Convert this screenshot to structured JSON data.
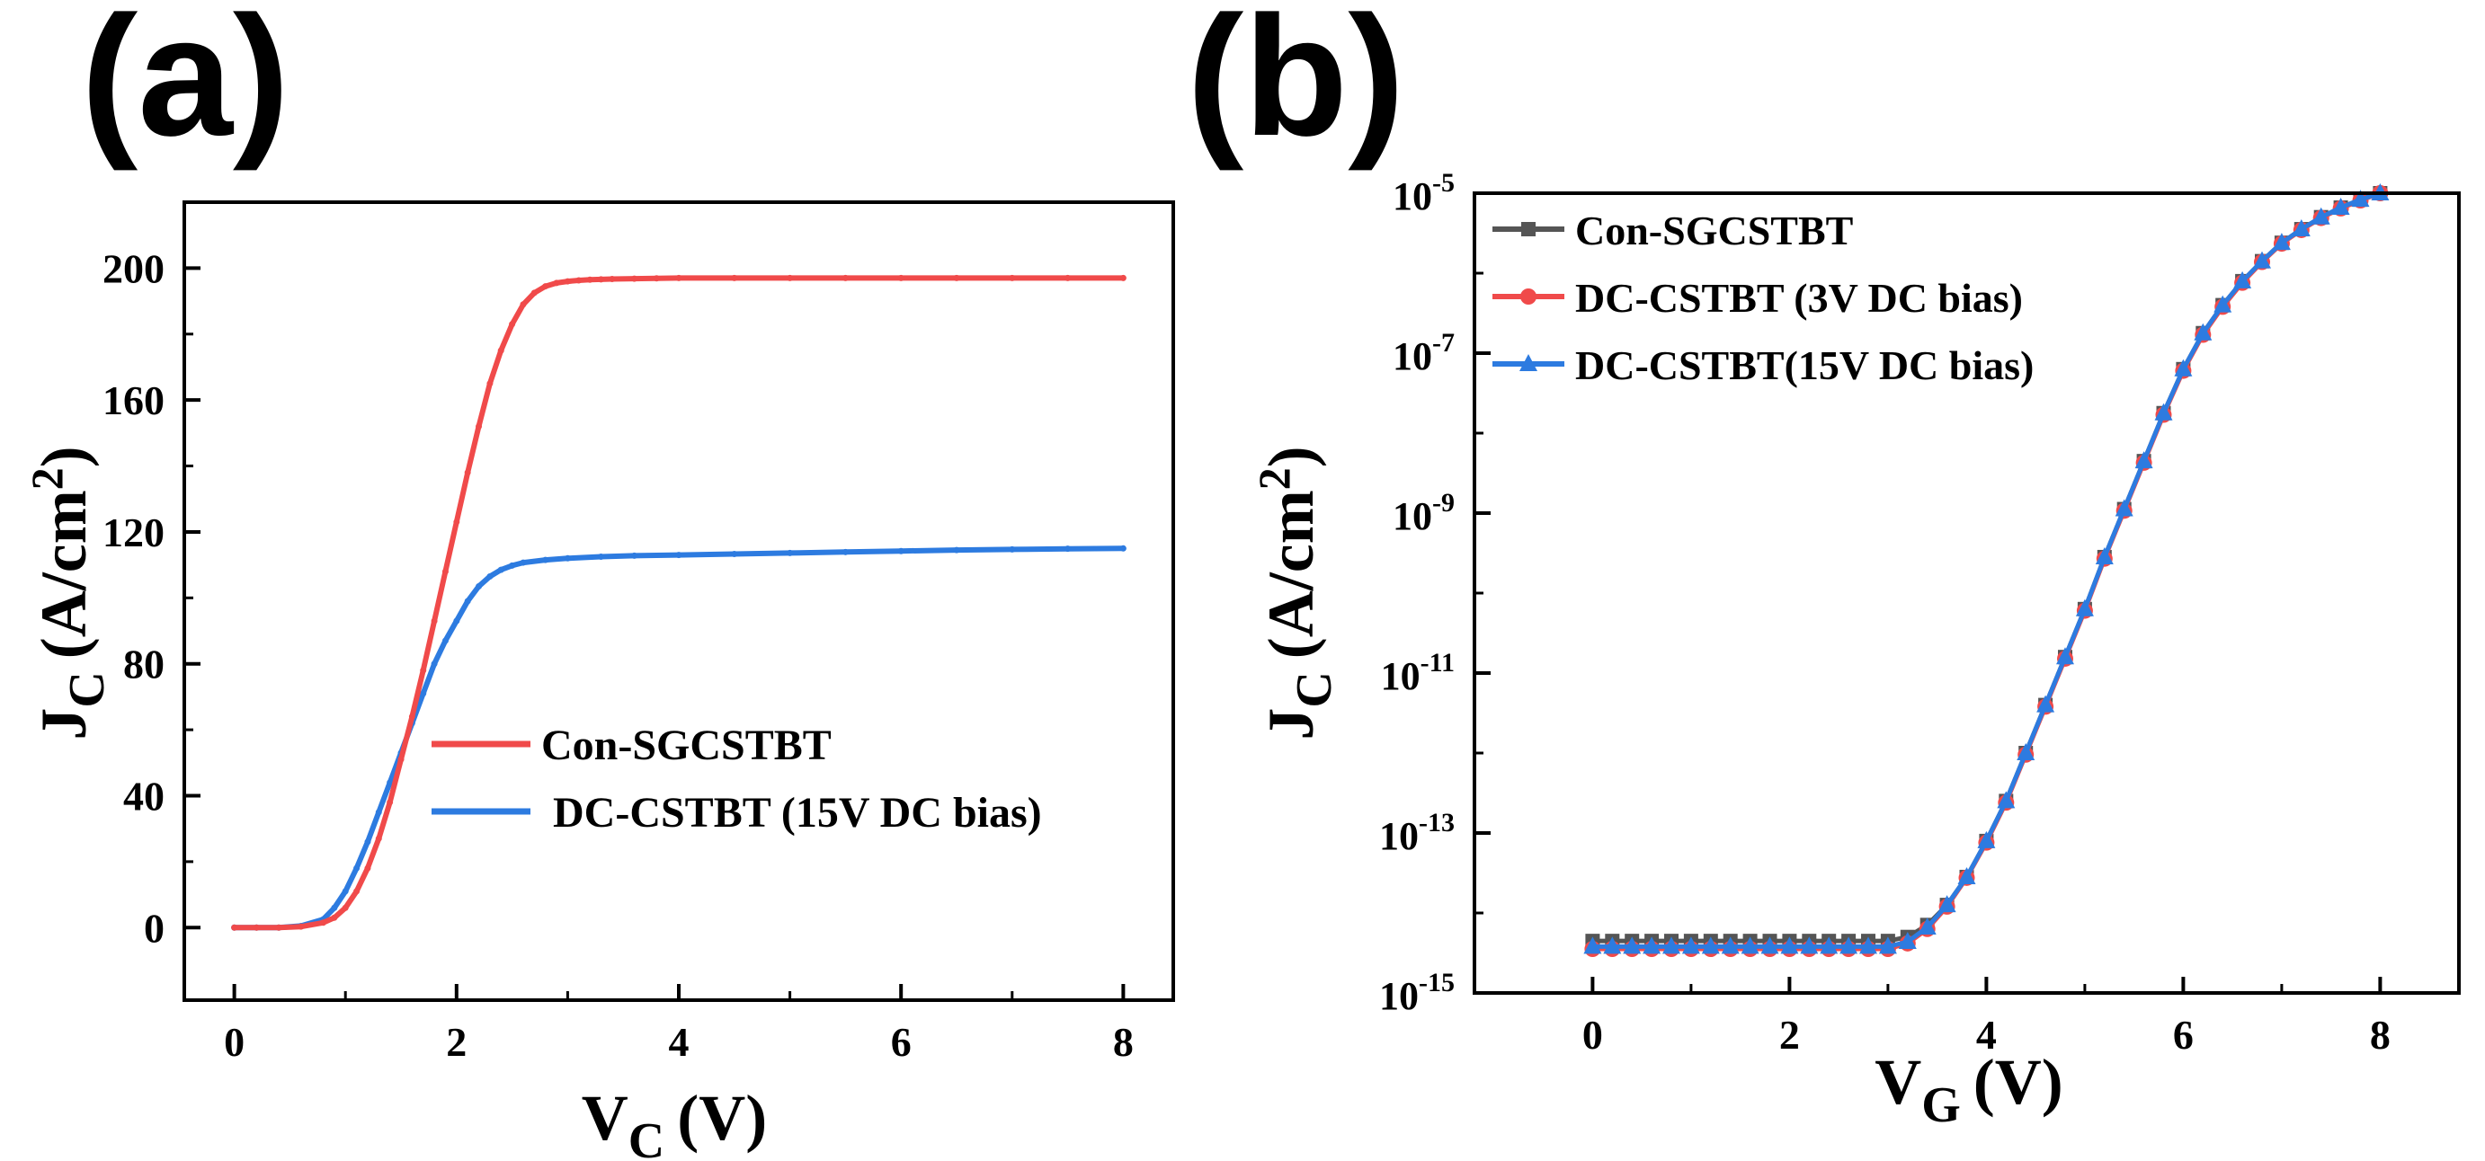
{
  "chart_data": [
    {
      "panel": "(a)",
      "type": "line",
      "xlabel": {
        "main": "V",
        "sub": "C",
        "unit": "(V)"
      },
      "ylabel": {
        "main": "J",
        "sub": "C",
        "unit": "(A/cm",
        "sup": "2",
        "close": ")"
      },
      "xlim": [
        -0.45,
        8.45
      ],
      "ylim": [
        -22,
        220
      ],
      "xticks": [
        0,
        2,
        4,
        6,
        8
      ],
      "yticks": [
        0,
        40,
        80,
        120,
        160,
        200
      ],
      "legend_position": "center-right",
      "series": [
        {
          "name": "Con-SGCSTBT",
          "color": "#f04a4a",
          "x": [
            0,
            0.2,
            0.4,
            0.6,
            0.8,
            0.9,
            1.0,
            1.1,
            1.2,
            1.3,
            1.4,
            1.5,
            1.6,
            1.7,
            1.8,
            1.9,
            2.0,
            2.1,
            2.2,
            2.3,
            2.4,
            2.5,
            2.6,
            2.7,
            2.8,
            2.9,
            3.0,
            3.1,
            3.2,
            3.3,
            3.4,
            3.6,
            3.8,
            4.0,
            4.5,
            5.0,
            5.5,
            6.0,
            6.5,
            7.0,
            7.5,
            8.0
          ],
          "y": [
            0,
            0,
            0,
            0.3,
            1.5,
            3,
            6,
            11,
            18,
            27,
            38,
            51,
            64,
            78,
            93,
            108,
            123,
            138,
            152,
            165,
            175,
            183,
            189,
            192.5,
            194.5,
            195.5,
            196,
            196.3,
            196.5,
            196.6,
            196.7,
            196.8,
            196.9,
            197,
            197,
            197,
            197,
            197,
            197,
            197,
            197,
            197
          ]
        },
        {
          "name": "DC-CSTBT (15V DC bias)",
          "color": "#2d7be0",
          "x": [
            0,
            0.2,
            0.4,
            0.6,
            0.8,
            0.9,
            1.0,
            1.1,
            1.2,
            1.3,
            1.4,
            1.5,
            1.6,
            1.7,
            1.8,
            1.9,
            2.0,
            2.1,
            2.2,
            2.3,
            2.4,
            2.5,
            2.6,
            2.8,
            3.0,
            3.3,
            3.6,
            4.0,
            4.5,
            5.0,
            5.5,
            6.0,
            6.5,
            7.0,
            7.5,
            8.0
          ],
          "y": [
            0,
            0,
            0,
            0.5,
            2.5,
            6,
            11,
            18,
            26,
            35,
            44,
            53,
            62,
            71,
            80,
            87,
            93,
            99,
            103.5,
            106.5,
            108.5,
            109.8,
            110.7,
            111.5,
            112,
            112.5,
            112.8,
            113,
            113.3,
            113.6,
            113.9,
            114.2,
            114.5,
            114.7,
            114.9,
            115
          ]
        }
      ]
    },
    {
      "panel": "(b)",
      "type": "line",
      "yscale": "log",
      "xlabel": {
        "main": "V",
        "sub": "G",
        "unit": "(V)"
      },
      "ylabel": {
        "main": "J",
        "sub": "C",
        "unit": "(A/cm",
        "sup": "2",
        "close": ")"
      },
      "xlim": [
        -1.2,
        8.8
      ],
      "ylim_log10": [
        -15,
        -5
      ],
      "xticks": [
        0,
        2,
        4,
        6,
        8
      ],
      "yticks_log10": [
        -15,
        -13,
        -11,
        -9,
        -7,
        -5
      ],
      "ytick_base": "10",
      "legend_position": "top-left",
      "series": [
        {
          "name": "Con-SGCSTBT",
          "color": "#555555",
          "marker": "square",
          "x": [
            0,
            0.2,
            0.4,
            0.6,
            0.8,
            1.0,
            1.2,
            1.4,
            1.6,
            1.8,
            2.0,
            2.2,
            2.4,
            2.6,
            2.8,
            3.0,
            3.2,
            3.4,
            3.6,
            3.8,
            4.0,
            4.2,
            4.4,
            4.6,
            4.8,
            5.0,
            5.2,
            5.4,
            5.6,
            5.8,
            6.0,
            6.2,
            6.4,
            6.6,
            6.8,
            7.0,
            7.2,
            7.4,
            7.6,
            7.8,
            8.0
          ],
          "log10_y": [
            -14.35,
            -14.35,
            -14.35,
            -14.35,
            -14.35,
            -14.35,
            -14.35,
            -14.35,
            -14.35,
            -14.35,
            -14.35,
            -14.35,
            -14.35,
            -14.35,
            -14.35,
            -14.35,
            -14.3,
            -14.15,
            -13.9,
            -13.55,
            -13.1,
            -12.6,
            -12.0,
            -11.4,
            -10.8,
            -10.2,
            -9.55,
            -8.95,
            -8.35,
            -7.75,
            -7.2,
            -6.75,
            -6.4,
            -6.1,
            -5.85,
            -5.62,
            -5.45,
            -5.3,
            -5.18,
            -5.08,
            -5.0
          ]
        },
        {
          "name": "DC-CSTBT (3V DC bias)",
          "color": "#f04a4a",
          "marker": "circle",
          "x": [
            0,
            0.2,
            0.4,
            0.6,
            0.8,
            1.0,
            1.2,
            1.4,
            1.6,
            1.8,
            2.0,
            2.2,
            2.4,
            2.6,
            2.8,
            3.0,
            3.2,
            3.4,
            3.6,
            3.8,
            4.0,
            4.2,
            4.4,
            4.6,
            4.8,
            5.0,
            5.2,
            5.4,
            5.6,
            5.8,
            6.0,
            6.2,
            6.4,
            6.6,
            6.8,
            7.0,
            7.2,
            7.4,
            7.6,
            7.8,
            8.0
          ],
          "log10_y": [
            -14.45,
            -14.45,
            -14.45,
            -14.45,
            -14.45,
            -14.45,
            -14.45,
            -14.45,
            -14.45,
            -14.45,
            -14.45,
            -14.45,
            -14.45,
            -14.45,
            -14.45,
            -14.45,
            -14.38,
            -14.2,
            -13.92,
            -13.56,
            -13.12,
            -12.62,
            -12.02,
            -11.42,
            -10.82,
            -10.22,
            -9.57,
            -8.97,
            -8.37,
            -7.77,
            -7.22,
            -6.77,
            -6.42,
            -6.12,
            -5.86,
            -5.63,
            -5.46,
            -5.31,
            -5.19,
            -5.09,
            -5.0
          ]
        },
        {
          "name": "DC-CSTBT(15V DC bias)",
          "color": "#2d7be0",
          "marker": "triangle",
          "x": [
            0,
            0.2,
            0.4,
            0.6,
            0.8,
            1.0,
            1.2,
            1.4,
            1.6,
            1.8,
            2.0,
            2.2,
            2.4,
            2.6,
            2.8,
            3.0,
            3.2,
            3.4,
            3.6,
            3.8,
            4.0,
            4.2,
            4.4,
            4.6,
            4.8,
            5.0,
            5.2,
            5.4,
            5.6,
            5.8,
            6.0,
            6.2,
            6.4,
            6.6,
            6.8,
            7.0,
            7.2,
            7.4,
            7.6,
            7.8,
            8.0
          ],
          "log10_y": [
            -14.42,
            -14.42,
            -14.42,
            -14.42,
            -14.42,
            -14.42,
            -14.42,
            -14.42,
            -14.42,
            -14.42,
            -14.42,
            -14.42,
            -14.42,
            -14.42,
            -14.42,
            -14.42,
            -14.36,
            -14.18,
            -13.9,
            -13.55,
            -13.1,
            -12.6,
            -12.0,
            -11.4,
            -10.8,
            -10.2,
            -9.55,
            -8.95,
            -8.35,
            -7.75,
            -7.2,
            -6.75,
            -6.4,
            -6.1,
            -5.85,
            -5.62,
            -5.45,
            -5.3,
            -5.18,
            -5.08,
            -5.0
          ]
        }
      ]
    }
  ]
}
